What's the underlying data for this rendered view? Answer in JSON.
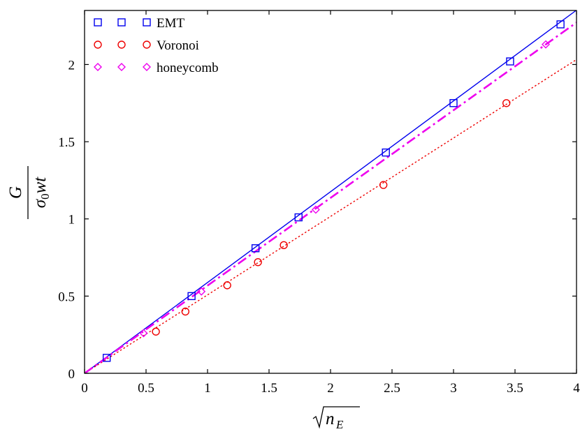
{
  "chart_data": {
    "type": "scatter",
    "title": "",
    "xlabel": "√n_E",
    "ylabel": "G / σ0wt",
    "xlim": [
      0,
      4
    ],
    "ylim": [
      0,
      2.35
    ],
    "xticks": [
      0,
      0.5,
      1,
      1.5,
      2,
      2.5,
      3,
      3.5,
      4
    ],
    "yticks": [
      0,
      0.5,
      1,
      1.5,
      2
    ],
    "xtick_labels": [
      "0",
      "0.5",
      "1",
      "1.5",
      "2",
      "2.5",
      "3",
      "3.5",
      "4"
    ],
    "ytick_labels": [
      "0",
      "0.5",
      "1",
      "1.5",
      "2"
    ],
    "grid": false,
    "legend_position": "top-left",
    "series": [
      {
        "name": "EMT",
        "marker": "square",
        "color": "#0000ee",
        "line_style": "solid",
        "line": {
          "slope": 0.588,
          "intercept": 0
        },
        "points": [
          {
            "x": 0.18,
            "y": 0.1
          },
          {
            "x": 0.87,
            "y": 0.5
          },
          {
            "x": 1.39,
            "y": 0.81
          },
          {
            "x": 1.74,
            "y": 1.01
          },
          {
            "x": 2.45,
            "y": 1.43
          },
          {
            "x": 3.0,
            "y": 1.75
          },
          {
            "x": 3.46,
            "y": 2.02
          },
          {
            "x": 3.87,
            "y": 2.26
          }
        ]
      },
      {
        "name": "Voronoi",
        "marker": "circle",
        "color": "#ee0000",
        "line_style": "dotted",
        "line": {
          "slope": 0.508,
          "intercept": 0
        },
        "points": [
          {
            "x": 0.58,
            "y": 0.27
          },
          {
            "x": 0.82,
            "y": 0.4
          },
          {
            "x": 1.16,
            "y": 0.57
          },
          {
            "x": 1.41,
            "y": 0.72
          },
          {
            "x": 1.62,
            "y": 0.83
          },
          {
            "x": 2.43,
            "y": 1.22
          },
          {
            "x": 3.43,
            "y": 1.75
          }
        ]
      },
      {
        "name": "honeycomb",
        "marker": "diamond",
        "color": "#ee00ee",
        "line_style": "dashdot",
        "line": {
          "slope": 0.568,
          "intercept": 0
        },
        "points": [
          {
            "x": 0.48,
            "y": 0.26
          },
          {
            "x": 0.95,
            "y": 0.53
          },
          {
            "x": 1.88,
            "y": 1.06
          },
          {
            "x": 3.75,
            "y": 2.13
          }
        ]
      }
    ]
  }
}
